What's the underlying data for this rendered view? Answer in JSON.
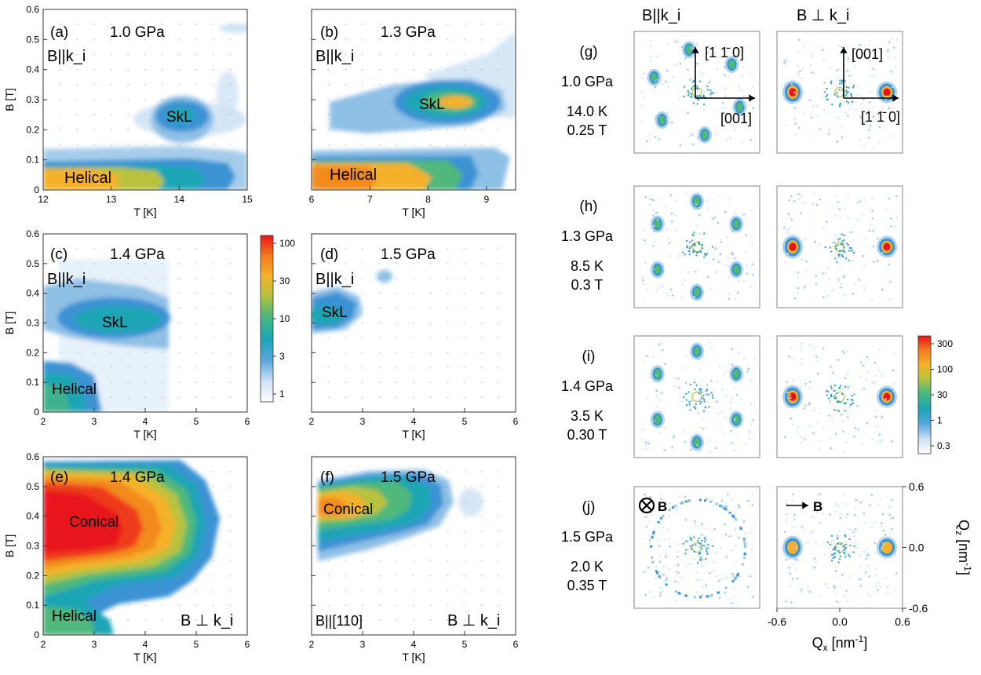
{
  "figure": {
    "colors": {
      "scale": [
        "#ffffff",
        "#d6e6f6",
        "#8fc0e6",
        "#3a93d4",
        "#1aa6b5",
        "#4fb87a",
        "#b9c23e",
        "#f5b12a",
        "#f28a1e",
        "#ee3a1a",
        "#e8141a"
      ],
      "frame": "#333333",
      "panel_frame": "#9a9a9a",
      "tick_dot": "#888888"
    }
  },
  "chart_data": [
    {
      "id": "a",
      "type": "heatmap",
      "panel_label": "(a)",
      "pressure": "1.0 GPa",
      "field_label": "B||k_i",
      "xlim": [
        12,
        15
      ],
      "ylim": [
        0,
        0.6
      ],
      "xticks": [
        "12",
        "13",
        "14",
        "15"
      ],
      "yticks": [
        "0",
        "0.1",
        "0.2",
        "0.3",
        "0.4",
        "0.5",
        "0.6"
      ],
      "xlabel": "T [K]",
      "ylabel": "B [T]",
      "regions": [
        {
          "name": "SkL",
          "T": 14.0,
          "B": 0.26,
          "peak": 12
        },
        {
          "name": "Helical",
          "T": 12.6,
          "B": 0.04,
          "peak": 30
        }
      ]
    },
    {
      "id": "b",
      "type": "heatmap",
      "panel_label": "(b)",
      "pressure": "1.3 GPa",
      "field_label": "B||k_i",
      "xlim": [
        6,
        9.5
      ],
      "ylim": [
        0,
        0.6
      ],
      "xticks": [
        "6",
        "7",
        "8",
        "9"
      ],
      "yticks": [],
      "xlabel": "T [K]",
      "ylabel": "",
      "regions": [
        {
          "name": "SkL",
          "T": 8.0,
          "B": 0.29,
          "peak": 30
        },
        {
          "name": "Helical",
          "T": 7.1,
          "B": 0.05,
          "peak": 35
        }
      ]
    },
    {
      "id": "c",
      "type": "heatmap",
      "panel_label": "(c)",
      "pressure": "1.4 GPa",
      "field_label": "B||k_i",
      "xlim": [
        2,
        6
      ],
      "ylim": [
        0,
        0.6
      ],
      "xticks": [
        "2",
        "3",
        "4",
        "5",
        "6"
      ],
      "yticks": [
        "0",
        "0.1",
        "0.2",
        "0.3",
        "0.4",
        "0.5",
        "0.6"
      ],
      "xlabel": "T [K]",
      "ylabel": "B [T]",
      "regions": [
        {
          "name": "SkL",
          "T": 3.6,
          "B": 0.3,
          "peak": 8
        },
        {
          "name": "Helical",
          "T": 2.6,
          "B": 0.06,
          "peak": 5
        }
      ]
    },
    {
      "id": "d",
      "type": "heatmap",
      "panel_label": "(d)",
      "pressure": "1.5 GPa",
      "field_label": "B||k_i",
      "xlim": [
        2,
        6
      ],
      "ylim": [
        0,
        0.6
      ],
      "xticks": [
        "2",
        "3",
        "4",
        "5",
        "6"
      ],
      "yticks": [],
      "xlabel": "T [K]",
      "ylabel": "",
      "regions": [
        {
          "name": "SkL",
          "T": 2.5,
          "B": 0.33,
          "peak": 5
        }
      ]
    },
    {
      "id": "e",
      "type": "heatmap",
      "panel_label": "(e)",
      "pressure": "1.4 GPa",
      "field_label": "B ⊥ k_i",
      "xlim": [
        2,
        6
      ],
      "ylim": [
        0,
        0.6
      ],
      "xticks": [
        "2",
        "3",
        "4",
        "5",
        "6"
      ],
      "yticks": [
        "0",
        "0.1",
        "0.2",
        "0.3",
        "0.4",
        "0.5",
        "0.6"
      ],
      "xlabel": "T [K]",
      "ylabel": "B [T]",
      "regions": [
        {
          "name": "Conical",
          "T": 3.2,
          "B": 0.38,
          "peak": 100
        },
        {
          "name": "Helical",
          "T": 2.4,
          "B": 0.03,
          "peak": 20
        }
      ]
    },
    {
      "id": "f",
      "type": "heatmap",
      "panel_label": "(f)",
      "pressure": "1.5 GPa",
      "field_label": "B ⊥ k_i",
      "extra_label": "B||[110]",
      "xlim": [
        2,
        6
      ],
      "ylim": [
        0,
        0.6
      ],
      "xticks": [
        "2",
        "3",
        "4",
        "5",
        "6"
      ],
      "yticks": [],
      "xlabel": "T [K]",
      "ylabel": "",
      "regions": [
        {
          "name": "Conical",
          "T": 2.6,
          "B": 0.44,
          "peak": 40
        }
      ]
    },
    {
      "id": "cb1",
      "type": "colorbar",
      "ticks": [
        "100",
        "30",
        "10",
        "3",
        "1"
      ]
    },
    {
      "id": "sans",
      "type": "heatmap",
      "column_headers": [
        "B||k_i",
        "B ⊥ k_i"
      ],
      "rows": [
        {
          "label": "(g)",
          "pressure": "1.0 GPa",
          "temperature": "14.0 K",
          "field": "0.25 T",
          "spots_left": 6,
          "spots_right": 2
        },
        {
          "label": "(h)",
          "pressure": "1.3 GPa",
          "temperature": "8.5 K",
          "field": "0.3 T",
          "spots_left": 6,
          "spots_right": 2
        },
        {
          "label": "(i)",
          "pressure": "1.4 GPa",
          "temperature": "3.5 K",
          "field": "0.30 T",
          "spots_left": 6,
          "spots_right": 2
        },
        {
          "label": "(j)",
          "pressure": "1.5 GPa",
          "temperature": "2.0 K",
          "field": "0.35 T",
          "spots_left": 0,
          "spots_right": 2
        }
      ],
      "axes_g_left": [
        "[1 1̄ 0]",
        "[001]"
      ],
      "axes_g_right": [
        "[001]",
        "[1 1̄ 0]"
      ],
      "j_left_marker": "B",
      "j_right_marker": "B",
      "xlabel": "Q",
      "xlabel_sub": "x",
      "ylabel": "Q",
      "ylabel_sub": "z",
      "unit": " [nm",
      "unit_sup": "-1",
      "unit_end": "]",
      "xticks": [
        "-0.6",
        "0.0",
        "0.6"
      ],
      "yticks": [
        "0.6",
        "0.0",
        "-0.6"
      ],
      "qlim": [
        -0.6,
        0.6
      ]
    },
    {
      "id": "cb2",
      "type": "colorbar",
      "ticks": [
        "300",
        "100",
        "30",
        "1",
        "0.3"
      ]
    }
  ]
}
